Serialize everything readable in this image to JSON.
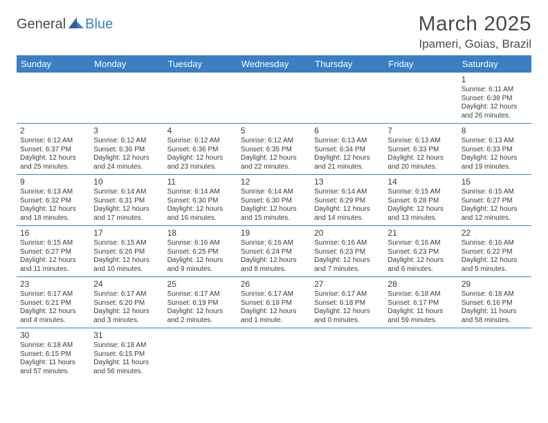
{
  "logo": {
    "general": "General",
    "blue": "Blue"
  },
  "title": "March 2025",
  "location": "Ipameri, Goias, Brazil",
  "header_bg": "#3a7fc4",
  "header_fg": "#ffffff",
  "border_color": "#3a7fc4",
  "text_color": "#3a3a3a",
  "daynames": [
    "Sunday",
    "Monday",
    "Tuesday",
    "Wednesday",
    "Thursday",
    "Friday",
    "Saturday"
  ],
  "weeks": [
    [
      null,
      null,
      null,
      null,
      null,
      null,
      {
        "n": "1",
        "sr": "Sunrise: 6:11 AM",
        "ss": "Sunset: 6:38 PM",
        "d1": "Daylight: 12 hours",
        "d2": "and 26 minutes."
      }
    ],
    [
      {
        "n": "2",
        "sr": "Sunrise: 6:12 AM",
        "ss": "Sunset: 6:37 PM",
        "d1": "Daylight: 12 hours",
        "d2": "and 25 minutes."
      },
      {
        "n": "3",
        "sr": "Sunrise: 6:12 AM",
        "ss": "Sunset: 6:36 PM",
        "d1": "Daylight: 12 hours",
        "d2": "and 24 minutes."
      },
      {
        "n": "4",
        "sr": "Sunrise: 6:12 AM",
        "ss": "Sunset: 6:36 PM",
        "d1": "Daylight: 12 hours",
        "d2": "and 23 minutes."
      },
      {
        "n": "5",
        "sr": "Sunrise: 6:12 AM",
        "ss": "Sunset: 6:35 PM",
        "d1": "Daylight: 12 hours",
        "d2": "and 22 minutes."
      },
      {
        "n": "6",
        "sr": "Sunrise: 6:13 AM",
        "ss": "Sunset: 6:34 PM",
        "d1": "Daylight: 12 hours",
        "d2": "and 21 minutes."
      },
      {
        "n": "7",
        "sr": "Sunrise: 6:13 AM",
        "ss": "Sunset: 6:33 PM",
        "d1": "Daylight: 12 hours",
        "d2": "and 20 minutes."
      },
      {
        "n": "8",
        "sr": "Sunrise: 6:13 AM",
        "ss": "Sunset: 6:33 PM",
        "d1": "Daylight: 12 hours",
        "d2": "and 19 minutes."
      }
    ],
    [
      {
        "n": "9",
        "sr": "Sunrise: 6:13 AM",
        "ss": "Sunset: 6:32 PM",
        "d1": "Daylight: 12 hours",
        "d2": "and 18 minutes."
      },
      {
        "n": "10",
        "sr": "Sunrise: 6:14 AM",
        "ss": "Sunset: 6:31 PM",
        "d1": "Daylight: 12 hours",
        "d2": "and 17 minutes."
      },
      {
        "n": "11",
        "sr": "Sunrise: 6:14 AM",
        "ss": "Sunset: 6:30 PM",
        "d1": "Daylight: 12 hours",
        "d2": "and 16 minutes."
      },
      {
        "n": "12",
        "sr": "Sunrise: 6:14 AM",
        "ss": "Sunset: 6:30 PM",
        "d1": "Daylight: 12 hours",
        "d2": "and 15 minutes."
      },
      {
        "n": "13",
        "sr": "Sunrise: 6:14 AM",
        "ss": "Sunset: 6:29 PM",
        "d1": "Daylight: 12 hours",
        "d2": "and 14 minutes."
      },
      {
        "n": "14",
        "sr": "Sunrise: 6:15 AM",
        "ss": "Sunset: 6:28 PM",
        "d1": "Daylight: 12 hours",
        "d2": "and 13 minutes."
      },
      {
        "n": "15",
        "sr": "Sunrise: 6:15 AM",
        "ss": "Sunset: 6:27 PM",
        "d1": "Daylight: 12 hours",
        "d2": "and 12 minutes."
      }
    ],
    [
      {
        "n": "16",
        "sr": "Sunrise: 6:15 AM",
        "ss": "Sunset: 6:27 PM",
        "d1": "Daylight: 12 hours",
        "d2": "and 11 minutes."
      },
      {
        "n": "17",
        "sr": "Sunrise: 6:15 AM",
        "ss": "Sunset: 6:26 PM",
        "d1": "Daylight: 12 hours",
        "d2": "and 10 minutes."
      },
      {
        "n": "18",
        "sr": "Sunrise: 6:16 AM",
        "ss": "Sunset: 6:25 PM",
        "d1": "Daylight: 12 hours",
        "d2": "and 9 minutes."
      },
      {
        "n": "19",
        "sr": "Sunrise: 6:16 AM",
        "ss": "Sunset: 6:24 PM",
        "d1": "Daylight: 12 hours",
        "d2": "and 8 minutes."
      },
      {
        "n": "20",
        "sr": "Sunrise: 6:16 AM",
        "ss": "Sunset: 6:23 PM",
        "d1": "Daylight: 12 hours",
        "d2": "and 7 minutes."
      },
      {
        "n": "21",
        "sr": "Sunrise: 6:16 AM",
        "ss": "Sunset: 6:23 PM",
        "d1": "Daylight: 12 hours",
        "d2": "and 6 minutes."
      },
      {
        "n": "22",
        "sr": "Sunrise: 6:16 AM",
        "ss": "Sunset: 6:22 PM",
        "d1": "Daylight: 12 hours",
        "d2": "and 5 minutes."
      }
    ],
    [
      {
        "n": "23",
        "sr": "Sunrise: 6:17 AM",
        "ss": "Sunset: 6:21 PM",
        "d1": "Daylight: 12 hours",
        "d2": "and 4 minutes."
      },
      {
        "n": "24",
        "sr": "Sunrise: 6:17 AM",
        "ss": "Sunset: 6:20 PM",
        "d1": "Daylight: 12 hours",
        "d2": "and 3 minutes."
      },
      {
        "n": "25",
        "sr": "Sunrise: 6:17 AM",
        "ss": "Sunset: 6:19 PM",
        "d1": "Daylight: 12 hours",
        "d2": "and 2 minutes."
      },
      {
        "n": "26",
        "sr": "Sunrise: 6:17 AM",
        "ss": "Sunset: 6:19 PM",
        "d1": "Daylight: 12 hours",
        "d2": "and 1 minute."
      },
      {
        "n": "27",
        "sr": "Sunrise: 6:17 AM",
        "ss": "Sunset: 6:18 PM",
        "d1": "Daylight: 12 hours",
        "d2": "and 0 minutes."
      },
      {
        "n": "28",
        "sr": "Sunrise: 6:18 AM",
        "ss": "Sunset: 6:17 PM",
        "d1": "Daylight: 11 hours",
        "d2": "and 59 minutes."
      },
      {
        "n": "29",
        "sr": "Sunrise: 6:18 AM",
        "ss": "Sunset: 6:16 PM",
        "d1": "Daylight: 11 hours",
        "d2": "and 58 minutes."
      }
    ],
    [
      {
        "n": "30",
        "sr": "Sunrise: 6:18 AM",
        "ss": "Sunset: 6:15 PM",
        "d1": "Daylight: 11 hours",
        "d2": "and 57 minutes."
      },
      {
        "n": "31",
        "sr": "Sunrise: 6:18 AM",
        "ss": "Sunset: 6:15 PM",
        "d1": "Daylight: 11 hours",
        "d2": "and 56 minutes."
      },
      null,
      null,
      null,
      null,
      null
    ]
  ]
}
